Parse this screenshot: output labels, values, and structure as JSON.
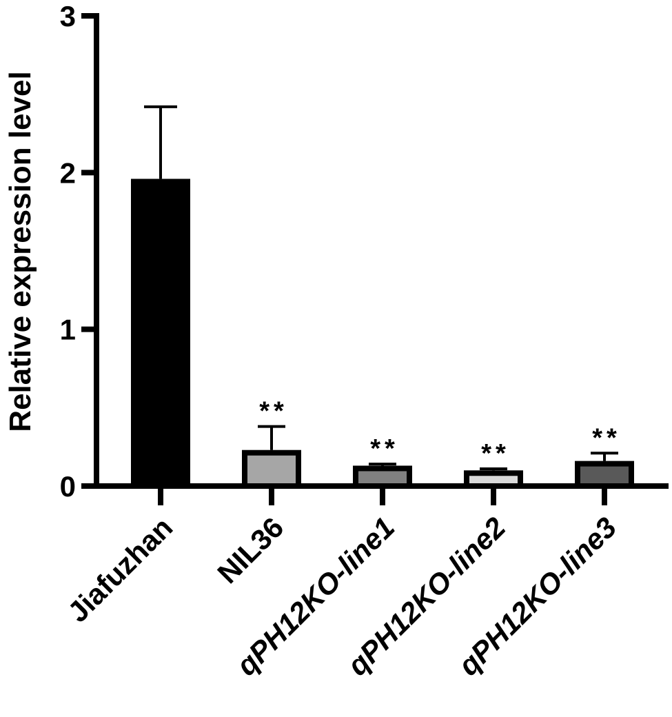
{
  "chart_data": {
    "type": "bar",
    "ylabel": "Relative expression level",
    "xlabel": "",
    "ylim": [
      0,
      3
    ],
    "yticks": [
      0,
      1,
      2,
      3
    ],
    "categories": [
      "Jiafuzhan",
      "NIL36",
      "qPH12KO-line1",
      "qPH12KO-line2",
      "qPH12KO-line3"
    ],
    "category_italic": [
      false,
      false,
      true,
      true,
      true
    ],
    "values": [
      1.96,
      0.23,
      0.13,
      0.1,
      0.16
    ],
    "errors": [
      0.46,
      0.15,
      0.01,
      0.01,
      0.05
    ],
    "bar_colors": [
      "#000000",
      "#a6a6a6",
      "#808080",
      "#d9d9d9",
      "#595959"
    ],
    "significance": [
      "",
      "**",
      "**",
      "**",
      "**"
    ],
    "grid": false
  }
}
